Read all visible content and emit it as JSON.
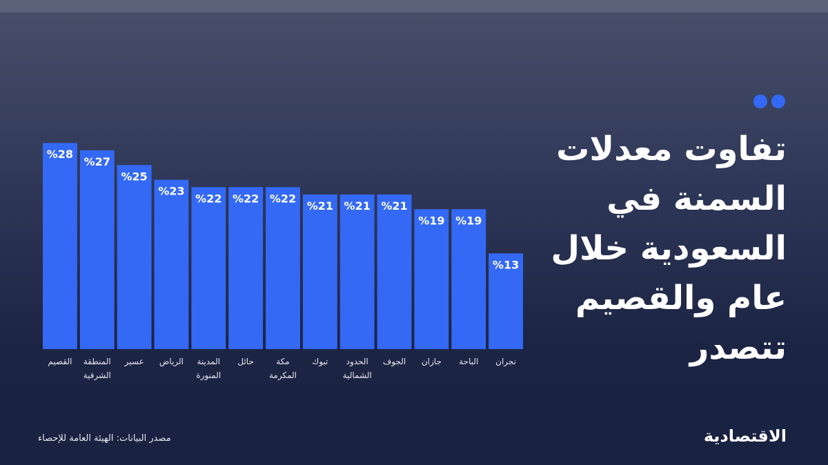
{
  "chart_data": {
    "type": "bar",
    "title": "تفاوت معدلات السمنة في السعودية خلال عام والقصيم تتصدر",
    "categories": [
      "القصيم",
      "المنطقة الشرقية",
      "عسير",
      "الرياض",
      "المدينة المنورة",
      "حائل",
      "مكة المكرمة",
      "تبوك",
      "الحدود الشمالية",
      "الجوف",
      "جازان",
      "الباحة",
      "نجران"
    ],
    "values": [
      28,
      27,
      25,
      23,
      22,
      22,
      22,
      21,
      21,
      21,
      19,
      19,
      13
    ],
    "value_labels": [
      "%28",
      "%27",
      "%25",
      "%23",
      "%22",
      "%22",
      "%22",
      "%21",
      "%21",
      "%21",
      "%19",
      "%19",
      "%13"
    ],
    "color": "#3469f5",
    "source": "مصدر البيانات: الهيئة العامة للإحصاء",
    "logo": "الاقتصادية"
  }
}
